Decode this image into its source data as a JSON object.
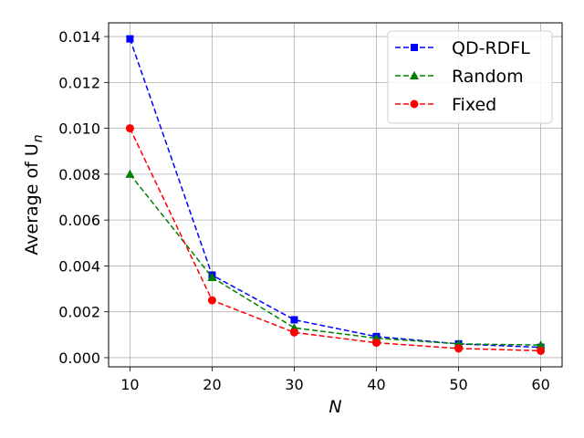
{
  "chart_data": {
    "type": "line",
    "xlabel": "N",
    "ylabel": "Average of  U",
    "ylabel_subscript": "n",
    "x": [
      10,
      20,
      30,
      40,
      50,
      60
    ],
    "xticks": [
      "10",
      "20",
      "30",
      "40",
      "50",
      "60"
    ],
    "yticks": [
      "0.000",
      "0.002",
      "0.004",
      "0.006",
      "0.008",
      "0.010",
      "0.012",
      "0.014"
    ],
    "xlim": [
      7.4,
      62.6
    ],
    "ylim": [
      -0.0004,
      0.0146
    ],
    "grid": true,
    "legend_position": "top-right",
    "series": [
      {
        "name": "QD-RDFL",
        "color": "#0000ff",
        "marker": "square",
        "line_style": "dashed",
        "values": [
          0.0139,
          0.0036,
          0.00165,
          0.00092,
          0.0006,
          0.00045
        ]
      },
      {
        "name": "Random",
        "color": "#008000",
        "marker": "triangle",
        "line_style": "dashed",
        "values": [
          0.008,
          0.0035,
          0.0013,
          0.00085,
          0.0006,
          0.00055
        ]
      },
      {
        "name": "Fixed",
        "color": "#ff0000",
        "marker": "circle",
        "line_style": "dashed",
        "values": [
          0.01,
          0.0025,
          0.0011,
          0.00065,
          0.0004,
          0.0003
        ]
      }
    ]
  }
}
